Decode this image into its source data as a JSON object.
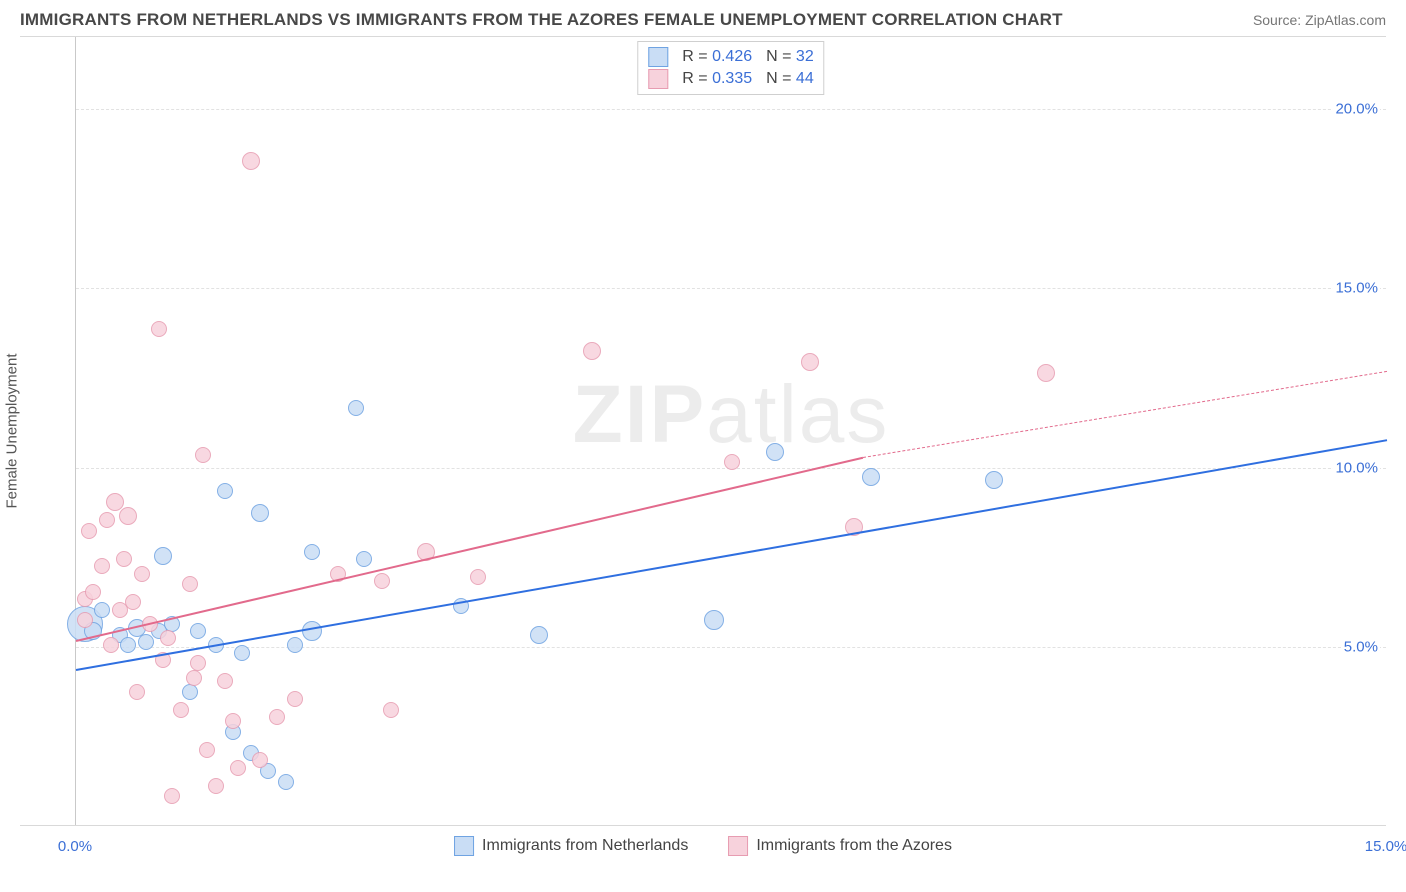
{
  "title": "IMMIGRANTS FROM NETHERLANDS VS IMMIGRANTS FROM THE AZORES FEMALE UNEMPLOYMENT CORRELATION CHART",
  "source_prefix": "Source: ",
  "source_name": "ZipAtlas.com",
  "yaxis_label": "Female Unemployment",
  "watermark_bold": "ZIP",
  "watermark_rest": "atlas",
  "chart": {
    "type": "scatter",
    "xlim": [
      0,
      15
    ],
    "ylim": [
      0,
      22
    ],
    "x_ticks": [
      {
        "v": 0,
        "label": "0.0%"
      },
      {
        "v": 15,
        "label": "15.0%"
      }
    ],
    "y_ticks": [
      {
        "v": 5,
        "label": "5.0%"
      },
      {
        "v": 10,
        "label": "10.0%"
      },
      {
        "v": 15,
        "label": "15.0%"
      },
      {
        "v": 20,
        "label": "20.0%"
      }
    ],
    "grid_color": "#e2e2e2",
    "background_color": "#ffffff",
    "axis_label_color": "#3b6fd6",
    "series": [
      {
        "id": "netherlands",
        "label": "Immigrants from Netherlands",
        "fill": "#c9ddf5",
        "stroke": "#6fa3e2",
        "trend_color": "#2f6fe0",
        "r_value": "0.426",
        "n_value": "32",
        "trend": {
          "x1": 0,
          "y1": 4.4,
          "x2": 15,
          "y2": 10.8,
          "dashed": false,
          "width": 2.2
        },
        "points": [
          {
            "x": 0.1,
            "y": 5.6,
            "r": 18
          },
          {
            "x": 0.2,
            "y": 5.4,
            "r": 9
          },
          {
            "x": 0.3,
            "y": 6.0,
            "r": 8
          },
          {
            "x": 0.5,
            "y": 5.3,
            "r": 8
          },
          {
            "x": 0.6,
            "y": 5.0,
            "r": 8
          },
          {
            "x": 0.7,
            "y": 5.5,
            "r": 9
          },
          {
            "x": 0.8,
            "y": 5.1,
            "r": 8
          },
          {
            "x": 0.95,
            "y": 5.4,
            "r": 8
          },
          {
            "x": 1.0,
            "y": 7.5,
            "r": 9
          },
          {
            "x": 1.1,
            "y": 5.6,
            "r": 8
          },
          {
            "x": 1.3,
            "y": 3.7,
            "r": 8
          },
          {
            "x": 1.4,
            "y": 5.4,
            "r": 8
          },
          {
            "x": 1.6,
            "y": 5.0,
            "r": 8
          },
          {
            "x": 1.7,
            "y": 9.3,
            "r": 8
          },
          {
            "x": 1.8,
            "y": 2.6,
            "r": 8
          },
          {
            "x": 1.9,
            "y": 4.8,
            "r": 8
          },
          {
            "x": 2.0,
            "y": 2.0,
            "r": 8
          },
          {
            "x": 2.1,
            "y": 8.7,
            "r": 9
          },
          {
            "x": 2.2,
            "y": 1.5,
            "r": 8
          },
          {
            "x": 2.4,
            "y": 1.2,
            "r": 8
          },
          {
            "x": 2.5,
            "y": 5.0,
            "r": 8
          },
          {
            "x": 2.7,
            "y": 7.6,
            "r": 8
          },
          {
            "x": 3.2,
            "y": 11.6,
            "r": 8
          },
          {
            "x": 3.3,
            "y": 7.4,
            "r": 8
          },
          {
            "x": 2.7,
            "y": 5.4,
            "r": 10
          },
          {
            "x": 4.4,
            "y": 6.1,
            "r": 8
          },
          {
            "x": 5.3,
            "y": 5.3,
            "r": 9
          },
          {
            "x": 7.3,
            "y": 5.7,
            "r": 10
          },
          {
            "x": 8.0,
            "y": 10.4,
            "r": 9
          },
          {
            "x": 9.1,
            "y": 9.7,
            "r": 9
          },
          {
            "x": 10.5,
            "y": 9.6,
            "r": 9
          }
        ]
      },
      {
        "id": "azores",
        "label": "Immigrants from the Azores",
        "fill": "#f7d2dc",
        "stroke": "#e79cb1",
        "trend_color": "#e26a8c",
        "r_value": "0.335",
        "n_value": "44",
        "trend_solid": {
          "x1": 0,
          "y1": 5.2,
          "x2": 9.0,
          "y2": 10.3,
          "dashed": false,
          "width": 2.2
        },
        "trend_dash": {
          "x1": 9.0,
          "y1": 10.3,
          "x2": 15,
          "y2": 12.7,
          "dashed": true,
          "width": 1.5
        },
        "points": [
          {
            "x": 0.1,
            "y": 6.3,
            "r": 8
          },
          {
            "x": 0.1,
            "y": 5.7,
            "r": 8
          },
          {
            "x": 0.15,
            "y": 8.2,
            "r": 8
          },
          {
            "x": 0.2,
            "y": 6.5,
            "r": 8
          },
          {
            "x": 0.3,
            "y": 7.2,
            "r": 8
          },
          {
            "x": 0.35,
            "y": 8.5,
            "r": 8
          },
          {
            "x": 0.4,
            "y": 5.0,
            "r": 8
          },
          {
            "x": 0.45,
            "y": 9.0,
            "r": 9
          },
          {
            "x": 0.5,
            "y": 6.0,
            "r": 8
          },
          {
            "x": 0.55,
            "y": 7.4,
            "r": 8
          },
          {
            "x": 0.6,
            "y": 8.6,
            "r": 9
          },
          {
            "x": 0.65,
            "y": 6.2,
            "r": 8
          },
          {
            "x": 0.7,
            "y": 3.7,
            "r": 8
          },
          {
            "x": 0.75,
            "y": 7.0,
            "r": 8
          },
          {
            "x": 0.85,
            "y": 5.6,
            "r": 8
          },
          {
            "x": 0.95,
            "y": 13.8,
            "r": 8
          },
          {
            "x": 1.0,
            "y": 4.6,
            "r": 8
          },
          {
            "x": 1.05,
            "y": 5.2,
            "r": 8
          },
          {
            "x": 1.1,
            "y": 0.8,
            "r": 8
          },
          {
            "x": 1.2,
            "y": 3.2,
            "r": 8
          },
          {
            "x": 1.3,
            "y": 6.7,
            "r": 8
          },
          {
            "x": 1.35,
            "y": 4.1,
            "r": 8
          },
          {
            "x": 1.4,
            "y": 4.5,
            "r": 8
          },
          {
            "x": 1.45,
            "y": 10.3,
            "r": 8
          },
          {
            "x": 1.5,
            "y": 2.1,
            "r": 8
          },
          {
            "x": 1.6,
            "y": 1.1,
            "r": 8
          },
          {
            "x": 1.7,
            "y": 4.0,
            "r": 8
          },
          {
            "x": 1.8,
            "y": 2.9,
            "r": 8
          },
          {
            "x": 1.85,
            "y": 1.6,
            "r": 8
          },
          {
            "x": 2.0,
            "y": 18.5,
            "r": 9
          },
          {
            "x": 2.1,
            "y": 1.8,
            "r": 8
          },
          {
            "x": 2.3,
            "y": 3.0,
            "r": 8
          },
          {
            "x": 2.5,
            "y": 3.5,
            "r": 8
          },
          {
            "x": 3.0,
            "y": 7.0,
            "r": 8
          },
          {
            "x": 3.5,
            "y": 6.8,
            "r": 8
          },
          {
            "x": 3.6,
            "y": 3.2,
            "r": 8
          },
          {
            "x": 4.0,
            "y": 7.6,
            "r": 9
          },
          {
            "x": 4.6,
            "y": 6.9,
            "r": 8
          },
          {
            "x": 5.9,
            "y": 13.2,
            "r": 9
          },
          {
            "x": 7.5,
            "y": 10.1,
            "r": 8
          },
          {
            "x": 8.4,
            "y": 12.9,
            "r": 9
          },
          {
            "x": 8.9,
            "y": 8.3,
            "r": 9
          },
          {
            "x": 11.1,
            "y": 12.6,
            "r": 9
          }
        ]
      }
    ]
  },
  "legend_r_label": "R =",
  "legend_n_label": "N ="
}
